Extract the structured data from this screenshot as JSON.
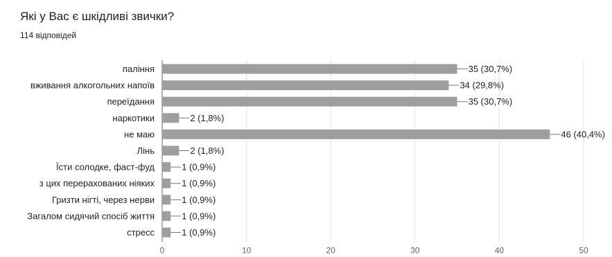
{
  "header": {
    "title": "Які у Вас є шкідливі звички?",
    "subtitle": "114 відповідей"
  },
  "chart_data": {
    "type": "bar",
    "orientation": "horizontal",
    "title": "",
    "xlabel": "",
    "ylabel": "",
    "xlim": [
      0,
      50
    ],
    "x_ticks": [
      0,
      10,
      20,
      30,
      40,
      50
    ],
    "grid": true,
    "bar_color": "#9e9e9e",
    "categories": [
      "паління",
      "вживання алкогольних напоїв",
      "переїдання",
      "наркотики",
      "не маю",
      "Лінь",
      "Їсти солодке, фаст-фуд",
      "з цих перерахованих ніяких",
      "Гризти нігті, через нерви",
      "Загалом сидячий спосіб життя",
      "стресс"
    ],
    "values": [
      35,
      34,
      35,
      2,
      46,
      2,
      1,
      1,
      1,
      1,
      1
    ],
    "value_labels": [
      "35 (30,7%)",
      "34 (29,8%)",
      "35 (30,7%)",
      "2 (1,8%)",
      "46 (40,4%)",
      "2 (1,8%)",
      "1 (0,9%)",
      "1 (0,9%)",
      "1 (0,9%)",
      "1 (0,9%)",
      "1 (0,9%)"
    ]
  }
}
